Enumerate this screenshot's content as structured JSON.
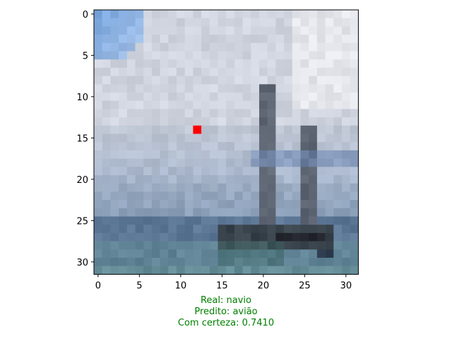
{
  "chart_data": {
    "type": "heatmap",
    "description": "32x32 pixelated image of a ship at sea under a cloudy sky, with a highlighted pixel",
    "image_size": [
      32,
      32
    ],
    "x_ticks": [
      "0",
      "5",
      "10",
      "15",
      "20",
      "25",
      "30"
    ],
    "y_ticks": [
      "0",
      "5",
      "10",
      "15",
      "20",
      "25",
      "30"
    ],
    "xlim": [
      -0.5,
      31.5
    ],
    "ylim": [
      31.5,
      -0.5
    ],
    "highlight_pixel": {
      "x": 12,
      "y": 14,
      "color": "#ff0000"
    },
    "caption_color": "#008000"
  },
  "caption": {
    "real": "Real: navio",
    "predito": "Predito: avião",
    "certeza": "Com certeza: 0.7410"
  }
}
